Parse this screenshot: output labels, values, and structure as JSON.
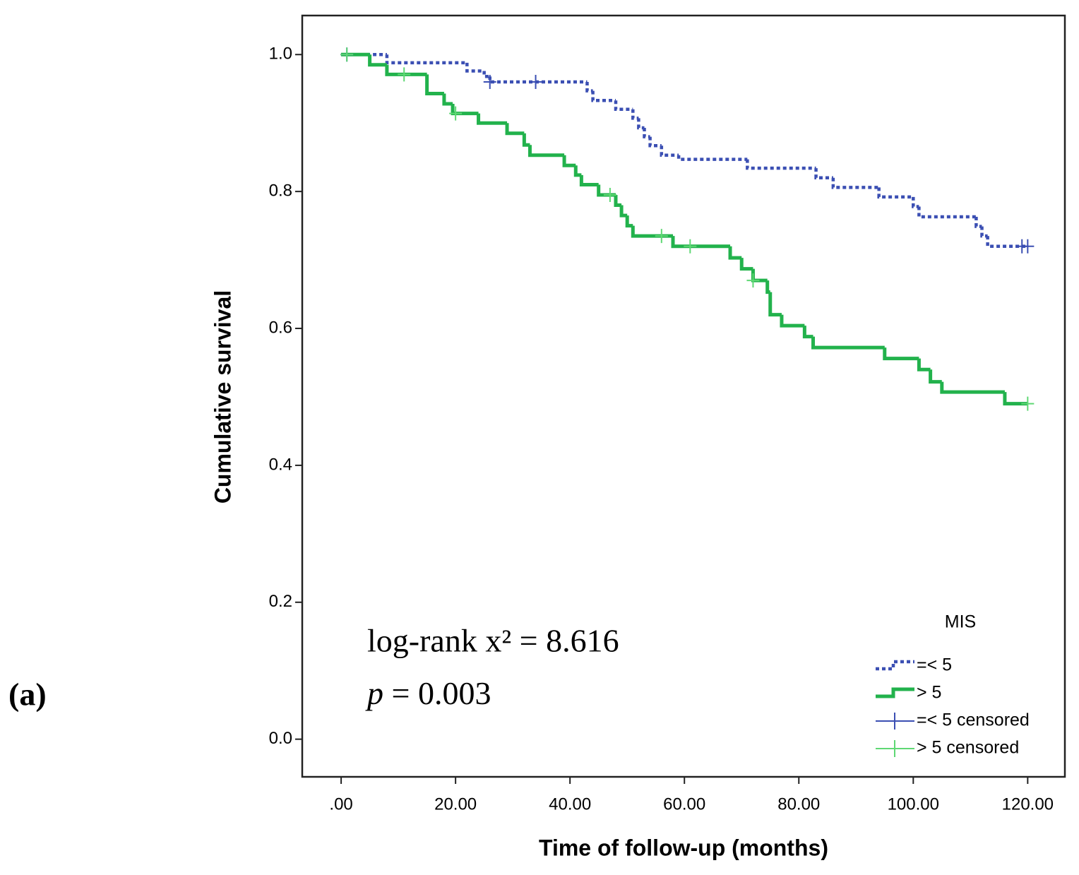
{
  "chart_data": {
    "type": "line",
    "step": "post",
    "panel_label": "(a)",
    "xlabel": "Time of follow-up (months)",
    "ylabel": "Cumulative survival",
    "annotation": {
      "stat": "log-rank x² = 8.616",
      "p_symbol": "p",
      "p_value": " = 0.003"
    },
    "legend_title": "MIS",
    "legend": "lower right",
    "xlim": [
      -6.8,
      126.5
    ],
    "ylim": [
      -0.055,
      1.057
    ],
    "xticks": [
      {
        "value": 0,
        "label": ".00"
      },
      {
        "value": 20,
        "label": "20.00"
      },
      {
        "value": 40,
        "label": "40.00"
      },
      {
        "value": 60,
        "label": "60.00"
      },
      {
        "value": 80,
        "label": "80.00"
      },
      {
        "value": 100,
        "label": "100.00"
      },
      {
        "value": 120,
        "label": "120.00"
      }
    ],
    "yticks": [
      {
        "value": 0,
        "label": "0.0"
      },
      {
        "value": 0.2,
        "label": "0.2"
      },
      {
        "value": 0.4,
        "label": "0.4"
      },
      {
        "value": 0.6,
        "label": "0.6"
      },
      {
        "value": 0.8,
        "label": "0.8"
      },
      {
        "value": 1,
        "label": "1.0"
      }
    ],
    "series": [
      {
        "name": "=< 5",
        "color": "#3b4fb3",
        "style": "dotted",
        "mark": "step",
        "x": [
          0,
          8,
          22,
          25,
          26,
          43,
          44,
          48,
          51,
          52,
          53,
          54,
          56,
          59,
          71,
          83,
          86,
          94,
          100,
          101,
          111,
          112,
          113,
          120
        ],
        "values": [
          1.0,
          0.988,
          0.976,
          0.968,
          0.96,
          0.947,
          0.933,
          0.92,
          0.907,
          0.893,
          0.88,
          0.867,
          0.853,
          0.847,
          0.834,
          0.82,
          0.806,
          0.792,
          0.778,
          0.763,
          0.749,
          0.735,
          0.72,
          0.72
        ]
      },
      {
        "name": "> 5",
        "color": "#22b24c",
        "style": "solid",
        "mark": "step",
        "x": [
          0,
          5,
          8,
          15,
          18,
          19.5,
          24,
          29,
          32,
          33,
          39,
          41,
          42,
          45,
          48,
          49,
          50,
          51,
          58,
          68,
          70,
          72,
          74.5,
          75,
          77,
          81,
          82.5,
          95,
          101,
          103,
          105,
          116,
          120
        ],
        "values": [
          1.0,
          0.985,
          0.971,
          0.943,
          0.928,
          0.914,
          0.9,
          0.885,
          0.868,
          0.853,
          0.838,
          0.824,
          0.81,
          0.795,
          0.78,
          0.765,
          0.75,
          0.735,
          0.72,
          0.703,
          0.687,
          0.67,
          0.653,
          0.62,
          0.604,
          0.588,
          0.572,
          0.556,
          0.54,
          0.522,
          0.507,
          0.49,
          0.49
        ]
      },
      {
        "name": "=< 5 censored",
        "color": "#3b4fb3",
        "mark": "plus",
        "x": [
          1,
          26,
          34,
          119,
          120
        ],
        "values": [
          1.0,
          0.96,
          0.96,
          0.72,
          0.72
        ]
      },
      {
        "name": "> 5 censored",
        "color": "#5fd874",
        "mark": "plus",
        "x": [
          1,
          11,
          20,
          47,
          56,
          61,
          72,
          120
        ],
        "values": [
          1.0,
          0.971,
          0.914,
          0.795,
          0.735,
          0.72,
          0.67,
          0.49
        ]
      }
    ]
  }
}
